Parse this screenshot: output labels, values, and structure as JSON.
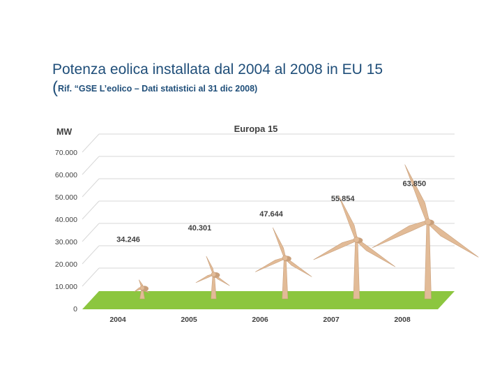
{
  "slide": {
    "title": "Potenza eolica installata dal 2004 al 2008 in EU 15",
    "subtitle_paren": "(",
    "subtitle_ref": "Rif. “GSE L’eolico – Dati statistici al 31 dic 2008)"
  },
  "colors": {
    "title": "#1f4e79",
    "floor": "#8cc63f",
    "turbine": "#e2bb97",
    "turbine_shadow": "#c9a07c",
    "grid": "#d7d7d7",
    "label": "#3f3f3f"
  },
  "chart_data": {
    "type": "bar",
    "title": "Europa 15",
    "ylabel": "MW",
    "xlabel": "",
    "categories": [
      "2004",
      "2005",
      "2006",
      "2007",
      "2008"
    ],
    "values": [
      34246,
      40301,
      47644,
      55854,
      63850
    ],
    "value_labels": [
      "34.246",
      "40.301",
      "47.644",
      "55.854",
      "63.850"
    ],
    "ylim": [
      0,
      70000
    ],
    "yticks": [
      0,
      10000,
      20000,
      30000,
      40000,
      50000,
      60000,
      70000
    ],
    "ytick_labels": [
      "0",
      "10.000",
      "20.000",
      "30.000",
      "40.000",
      "50.000",
      "60.000",
      "70.000"
    ],
    "grid": true,
    "mark_style": "wind turbines (height encodes value)"
  }
}
